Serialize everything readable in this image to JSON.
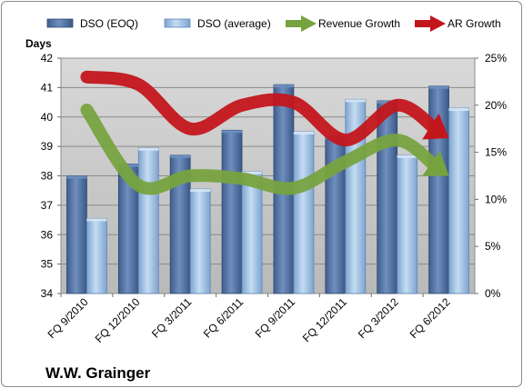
{
  "chart_data": {
    "type": "bar",
    "title": "",
    "footer_label": "W.W. Grainger",
    "ylabel": "Days",
    "y2label": "",
    "ylim": [
      34,
      42
    ],
    "yticks": [
      34,
      35,
      36,
      37,
      38,
      39,
      40,
      41,
      42
    ],
    "y2lim": [
      0,
      25
    ],
    "y2ticks": [
      "0%",
      "5%",
      "10%",
      "15%",
      "20%",
      "25%"
    ],
    "categories": [
      "FQ 9/2010",
      "FQ 12/2010",
      "FQ 3/2011",
      "FQ 6/2011",
      "FQ 9/2011",
      "FQ 12/2011",
      "FQ 3/2012",
      "FQ 6/2012"
    ],
    "series": [
      {
        "name": "DSO (EOQ)",
        "kind": "bar",
        "axis": "left",
        "color": "#4f6f9f",
        "values": [
          38.0,
          38.4,
          38.7,
          39.55,
          41.1,
          39.35,
          40.55,
          41.05
        ]
      },
      {
        "name": "DSO (average)",
        "kind": "bar",
        "axis": "left",
        "color": "#9dbfe3",
        "values": [
          36.55,
          38.95,
          37.55,
          38.15,
          39.5,
          40.6,
          38.7,
          40.3
        ]
      },
      {
        "name": "Revenue Growth",
        "kind": "arrow-line",
        "axis": "right",
        "color": "#77a33f",
        "values": [
          19.5,
          11.5,
          12.5,
          12.2,
          11.2,
          14.0,
          16.3,
          12.5
        ]
      },
      {
        "name": "AR Growth",
        "kind": "arrow-line",
        "axis": "right",
        "color": "#c3161c",
        "values": [
          23.0,
          22.2,
          17.5,
          20.0,
          20.3,
          16.3,
          20.0,
          16.5
        ]
      }
    ],
    "legend_position": "top",
    "grid": true
  }
}
